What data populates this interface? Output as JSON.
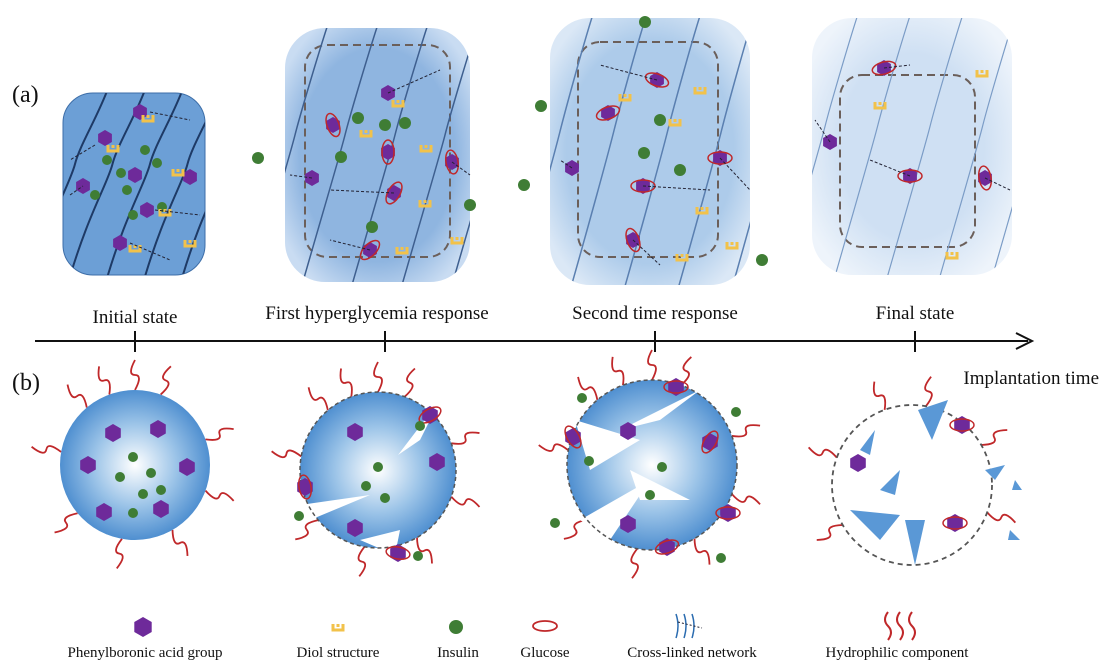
{
  "labels": {
    "panel_a": "(a)",
    "panel_b": "(b)"
  },
  "stages": [
    "Initial state",
    "First hyperglycemia response",
    "Second time response",
    "Final state"
  ],
  "axis_label": "Implantation time",
  "legend": [
    "Phenylboronic acid group",
    "Diol structure",
    "Insulin",
    "Glucose",
    "Cross-linked network",
    "Hydrophilic component"
  ]
}
